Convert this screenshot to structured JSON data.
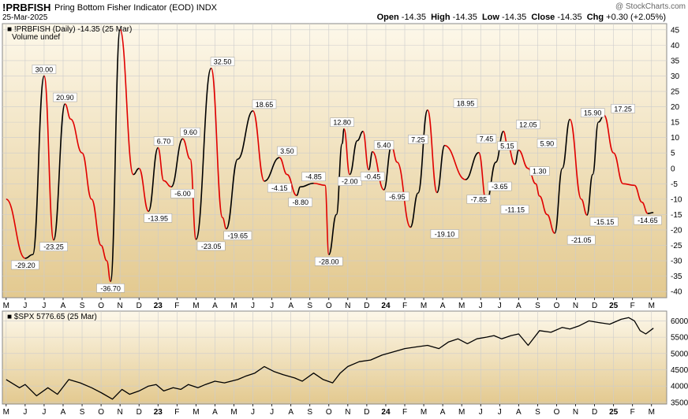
{
  "header": {
    "symbol": "!PRBFISH",
    "name": "Pring Bottom Fisher Indicator (EOD)",
    "exchange": "INDX",
    "date": "25-Mar-2025",
    "credit": "@ StockCharts.com",
    "quote": {
      "open_label": "Open",
      "open": "-14.35",
      "high_label": "High",
      "high": "-14.35",
      "low_label": "Low",
      "low": "-14.35",
      "close_label": "Close",
      "close": "-14.35",
      "chg_label": "Chg",
      "chg": "+0.30 (+2.05%)"
    }
  },
  "colors": {
    "up": "#000000",
    "down": "#e00000",
    "panel_top": "#fdf8ea",
    "panel_bottom": "#e3c98f",
    "grid": "#cccccc"
  },
  "chart_data": [
    {
      "type": "line",
      "legend": "!PRBFISH (Daily) -14.35 (25 Mar)",
      "legend2": "Volume undef",
      "ylim": [
        -42,
        47
      ],
      "yticks": [
        45,
        40,
        35,
        30,
        25,
        20,
        15,
        10,
        5,
        0,
        -5,
        -10,
        -15,
        -20,
        -25,
        -30,
        -35,
        -40
      ],
      "xaxis_ticks": [
        "M",
        "J",
        "J",
        "A",
        "S",
        "O",
        "N",
        "D",
        "23",
        "F",
        "M",
        "A",
        "M",
        "J",
        "J",
        "A",
        "S",
        "O",
        "N",
        "D",
        "24",
        "F",
        "M",
        "A",
        "M",
        "J",
        "J",
        "A",
        "S",
        "O",
        "N",
        "D",
        "25",
        "F",
        "M"
      ],
      "x": [
        0,
        1.0,
        1.4,
        2.0,
        2.5,
        3.1,
        3.4,
        4.0,
        4.5,
        5.0,
        5.3,
        5.5,
        6.0,
        6.7,
        7.0,
        7.5,
        8.0,
        8.3,
        8.7,
        9.3,
        9.7,
        10.0,
        10.8,
        11.4,
        11.6,
        12.2,
        13.0,
        13.6,
        14.4,
        14.8,
        15.3,
        15.5,
        16.2,
        16.8,
        17.0,
        17.4,
        17.7,
        17.8,
        18.1,
        18.5,
        18.8,
        19.1,
        19.3,
        19.9,
        20.3,
        20.6,
        21.3,
        21.7,
        22.2,
        22.7,
        23.1,
        24.2,
        24.9,
        25.3,
        25.8,
        26.2,
        26.4,
        26.8,
        27.0,
        27.5,
        27.9,
        28.1,
        28.5,
        28.9,
        29.3,
        29.7,
        30.3,
        30.6,
        30.9,
        31.2,
        31.5,
        32.0,
        32.5,
        33.1,
        33.5,
        33.8,
        34.1
      ],
      "y": [
        -10,
        -29.2,
        -28,
        30,
        -23.25,
        20.9,
        16,
        5,
        -10,
        -25,
        -30,
        -36.7,
        45,
        -2,
        0,
        -13.95,
        6.7,
        -4,
        -6,
        9.6,
        3,
        -23.05,
        32.5,
        -16,
        -19.65,
        3,
        18.65,
        -4.15,
        3.5,
        -2,
        -8.8,
        -6,
        -4.85,
        -5.5,
        -28,
        -15,
        8,
        12.8,
        -2,
        9,
        12,
        -0.45,
        5.4,
        -6.95,
        7.25,
        2,
        -19.1,
        -8,
        18.95,
        -7.85,
        7.45,
        -3.65,
        5.15,
        -11.15,
        2,
        12.05,
        8,
        1.3,
        5.9,
        0,
        -5,
        -9,
        -15,
        -21.05,
        0,
        15.9,
        -10,
        -15.15,
        -2,
        15,
        17.25,
        5,
        -5,
        -5.5,
        -11,
        -14.65,
        -14.35
      ],
      "labels": [
        {
          "x": 1.0,
          "y": -29.2,
          "text": "-29.20",
          "pos": "below"
        },
        {
          "x": 2.0,
          "y": 30,
          "text": "30.00",
          "pos": "above"
        },
        {
          "x": 2.5,
          "y": -23.25,
          "text": "-23.25",
          "pos": "below"
        },
        {
          "x": 3.1,
          "y": 20.9,
          "text": "20.90",
          "pos": "above"
        },
        {
          "x": 5.5,
          "y": -36.7,
          "text": "-36.70",
          "pos": "below"
        },
        {
          "x": 8.0,
          "y": -13.95,
          "text": "-13.95",
          "pos": "below"
        },
        {
          "x": 8.3,
          "y": 6.7,
          "text": "6.70",
          "pos": "above"
        },
        {
          "x": 9.3,
          "y": -6,
          "text": "-6.00",
          "pos": "below"
        },
        {
          "x": 9.7,
          "y": 9.6,
          "text": "9.60",
          "pos": "above"
        },
        {
          "x": 10.8,
          "y": -23.05,
          "text": "-23.05",
          "pos": "below"
        },
        {
          "x": 11.4,
          "y": 32.5,
          "text": "32.50",
          "pos": "above"
        },
        {
          "x": 12.2,
          "y": -19.65,
          "text": "-19.65",
          "pos": "below"
        },
        {
          "x": 13.6,
          "y": 18.65,
          "text": "18.65",
          "pos": "above"
        },
        {
          "x": 14.4,
          "y": -4.15,
          "text": "-4.15",
          "pos": "below"
        },
        {
          "x": 14.8,
          "y": 3.5,
          "text": "3.50",
          "pos": "above"
        },
        {
          "x": 15.5,
          "y": -8.8,
          "text": "-8.80",
          "pos": "below"
        },
        {
          "x": 16.2,
          "y": -4.85,
          "text": "-4.85",
          "pos": "above"
        },
        {
          "x": 17.0,
          "y": -28,
          "text": "-28.00",
          "pos": "below"
        },
        {
          "x": 17.7,
          "y": 12.8,
          "text": "12.80",
          "pos": "above"
        },
        {
          "x": 18.1,
          "y": -2,
          "text": "-2.00",
          "pos": "below"
        },
        {
          "x": 19.3,
          "y": -0.45,
          "text": "-0.45",
          "pos": "below"
        },
        {
          "x": 19.9,
          "y": 5.4,
          "text": "5.40",
          "pos": "above"
        },
        {
          "x": 20.6,
          "y": -6.95,
          "text": "-6.95",
          "pos": "below"
        },
        {
          "x": 21.7,
          "y": 7.25,
          "text": "7.25",
          "pos": "above"
        },
        {
          "x": 23.1,
          "y": -19.1,
          "text": "-19.10",
          "pos": "below"
        },
        {
          "x": 24.2,
          "y": 18.95,
          "text": "18.95",
          "pos": "above"
        },
        {
          "x": 24.9,
          "y": -7.85,
          "text": "-7.85",
          "pos": "below"
        },
        {
          "x": 25.3,
          "y": 7.45,
          "text": "7.45",
          "pos": "above"
        },
        {
          "x": 26.0,
          "y": -3.65,
          "text": "-3.65",
          "pos": "below"
        },
        {
          "x": 26.4,
          "y": 5.15,
          "text": "5.15",
          "pos": "above"
        },
        {
          "x": 26.8,
          "y": -11.15,
          "text": "-11.15",
          "pos": "below"
        },
        {
          "x": 27.5,
          "y": 12.05,
          "text": "12.05",
          "pos": "above"
        },
        {
          "x": 28.1,
          "y": 1.3,
          "text": "1.30",
          "pos": "below"
        },
        {
          "x": 28.5,
          "y": 5.9,
          "text": "5.90",
          "pos": "above"
        },
        {
          "x": 30.3,
          "y": -21.05,
          "text": "-21.05",
          "pos": "below"
        },
        {
          "x": 30.9,
          "y": 15.9,
          "text": "15.90",
          "pos": "above"
        },
        {
          "x": 31.5,
          "y": -15.15,
          "text": "-15.15",
          "pos": "below"
        },
        {
          "x": 32.5,
          "y": 17.25,
          "text": "17.25",
          "pos": "above"
        },
        {
          "x": 33.8,
          "y": -14.65,
          "text": "-14.65",
          "pos": "below"
        }
      ]
    },
    {
      "type": "line",
      "legend": "$SPX 5776.65 (25 Mar)",
      "ylim": [
        3450,
        6300
      ],
      "yticks": [
        6000,
        5500,
        5000,
        4500,
        4000,
        3500
      ],
      "x": [
        0,
        0.7,
        1.0,
        1.6,
        2.2,
        2.7,
        3.3,
        3.9,
        4.5,
        5.0,
        5.6,
        6.1,
        6.5,
        7.0,
        7.5,
        7.9,
        8.3,
        8.8,
        9.2,
        9.6,
        10.1,
        10.5,
        11.0,
        11.5,
        12.2,
        12.6,
        13.1,
        13.6,
        14.1,
        14.6,
        15.2,
        15.6,
        16.2,
        16.7,
        17.2,
        17.6,
        18.0,
        18.6,
        19.2,
        19.8,
        20.4,
        21.0,
        21.6,
        22.2,
        22.8,
        23.3,
        23.8,
        24.3,
        24.8,
        25.3,
        25.7,
        26.1,
        26.6,
        27.0,
        27.5,
        28.1,
        28.7,
        29.3,
        29.7,
        30.2,
        30.7,
        31.2,
        31.8,
        32.4,
        32.8,
        33.1,
        33.4,
        33.7,
        34.1
      ],
      "y": [
        4200,
        3950,
        4050,
        3700,
        3950,
        3750,
        4200,
        4100,
        3950,
        3800,
        3600,
        3900,
        3750,
        3850,
        4000,
        4050,
        3850,
        3950,
        3900,
        4050,
        3950,
        4050,
        4150,
        4100,
        4200,
        4300,
        4400,
        4600,
        4450,
        4350,
        4250,
        4150,
        4400,
        4200,
        4100,
        4400,
        4600,
        4750,
        4800,
        4950,
        5050,
        5150,
        5200,
        5250,
        5150,
        5350,
        5450,
        5300,
        5450,
        5500,
        5550,
        5450,
        5550,
        5600,
        5250,
        5700,
        5650,
        5800,
        5750,
        5850,
        6000,
        5950,
        5900,
        6050,
        6100,
        6000,
        5700,
        5600,
        5776.65
      ]
    }
  ]
}
